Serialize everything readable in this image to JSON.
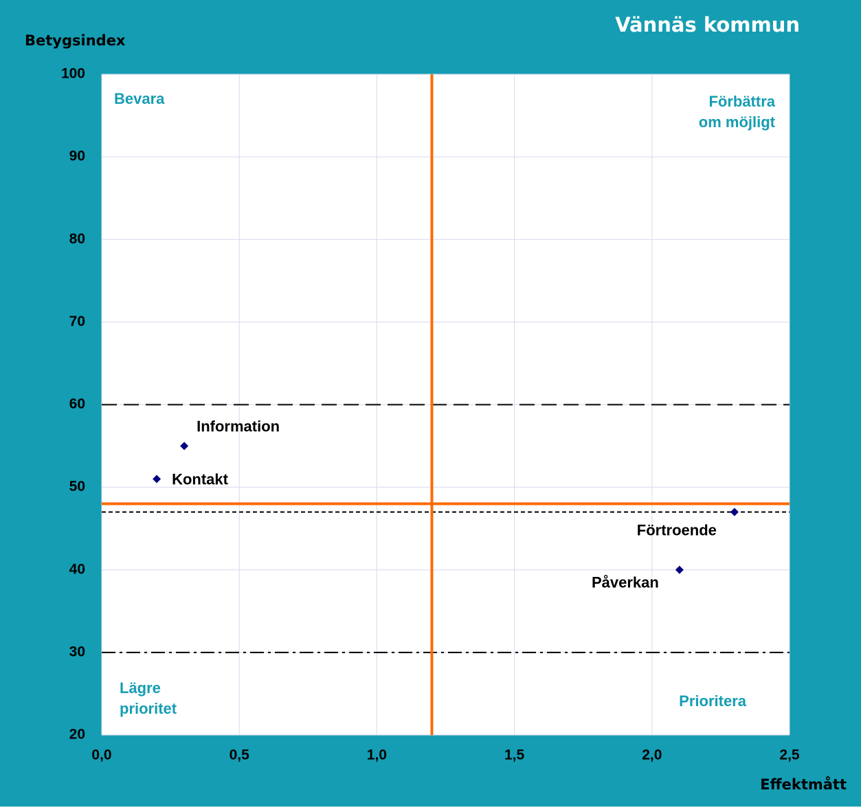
{
  "chart_data": {
    "type": "scatter",
    "title": "Vännäs kommun",
    "y_label": "Betygsindex",
    "x_label": "Effektmått",
    "labels": [
      "Information",
      "Kontakt",
      "Förtroende",
      "Påverkan"
    ],
    "x": [
      0.3,
      0.2,
      2.3,
      2.1
    ],
    "values": [
      55,
      51,
      47,
      40
    ],
    "color": "#000080",
    "xlim": [
      0,
      2.5
    ],
    "ylim": [
      20,
      100
    ],
    "xticks": [
      {
        "value": 0,
        "label": "0,0"
      },
      {
        "value": 0.5,
        "label": "0,5"
      },
      {
        "value": 1,
        "label": "1,0"
      },
      {
        "value": 1.5,
        "label": "1,5"
      },
      {
        "value": 2,
        "label": "2,0"
      },
      {
        "value": 2.5,
        "label": "2,5"
      }
    ],
    "yticks": [
      20,
      30,
      40,
      50,
      60,
      70,
      80,
      90,
      100
    ],
    "grid": true,
    "quadrant_lines": {
      "x": 1.2,
      "y": 48,
      "color": "#ff6a00"
    },
    "reference_lines": [
      {
        "value": 60,
        "style": "long-dash"
      },
      {
        "value": 47,
        "style": "short-dash"
      },
      {
        "value": 30,
        "style": "dash-dot"
      }
    ],
    "quadrant_labels": {
      "top_left": [
        "Bevara"
      ],
      "top_right": [
        "Förbättra",
        "om möjligt"
      ],
      "bottom_left": [
        "Lägre",
        "prioritet"
      ],
      "bottom_right": [
        "Prioritera"
      ]
    }
  }
}
